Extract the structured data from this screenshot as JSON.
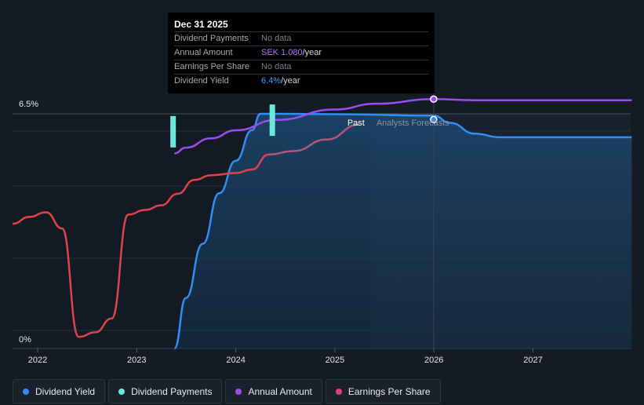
{
  "tooltip": {
    "date": "Dec 31 2025",
    "rows": [
      {
        "label": "Dividend Payments",
        "value": "No data",
        "unit": ""
      },
      {
        "label": "Annual Amount",
        "value": "SEK 1.080",
        "unit": "/year"
      },
      {
        "label": "Earnings Per Share",
        "value": "No data",
        "unit": ""
      },
      {
        "label": "Dividend Yield",
        "value": "6.4%",
        "unit": "/year"
      }
    ]
  },
  "regions": {
    "past": "Past",
    "forecast": "Analysts Forecasts"
  },
  "legend": [
    {
      "label": "Dividend Yield",
      "color": "#2f8ff5"
    },
    {
      "label": "Dividend Payments",
      "color": "#6fe8dc"
    },
    {
      "label": "Annual Amount",
      "color": "#9b4df0"
    },
    {
      "label": "Earnings Per Share",
      "color": "#d9437a"
    }
  ],
  "chart_data": {
    "type": "line",
    "x_range": [
      "2021-10-01",
      "2027-12-31"
    ],
    "x_ticks": [
      "2022",
      "2023",
      "2024",
      "2025",
      "2026",
      "2027"
    ],
    "y_ticks": [
      "0%",
      "6.5%"
    ],
    "ylim": [
      0,
      6.5
    ],
    "past_end": "2025-05-15",
    "forecast_start": "2025-05-15",
    "series": [
      {
        "name": "Dividend Yield",
        "color": "#2f8ff5",
        "unit": "%",
        "points": [
          [
            "2023-05-20",
            0
          ],
          [
            "2023-07-01",
            1.4
          ],
          [
            "2023-09-01",
            2.9
          ],
          [
            "2023-11-01",
            4.3
          ],
          [
            "2024-01-01",
            5.2
          ],
          [
            "2024-03-01",
            6.05
          ],
          [
            "2024-04-01",
            6.5
          ],
          [
            "2024-06-01",
            6.5
          ],
          [
            "2025-01-01",
            6.49
          ],
          [
            "2025-12-31",
            6.45
          ],
          [
            "2026-03-01",
            6.25
          ],
          [
            "2026-06-01",
            5.95
          ],
          [
            "2026-09-01",
            5.85
          ],
          [
            "2027-12-31",
            5.85
          ]
        ]
      },
      {
        "name": "Annual Amount",
        "color": "#9b4df0",
        "unit": "SEK",
        "points": [
          [
            "2023-05-20",
            0.845
          ],
          [
            "2023-07-01",
            0.87
          ],
          [
            "2023-10-01",
            0.91
          ],
          [
            "2024-01-01",
            0.945
          ],
          [
            "2024-06-01",
            0.99
          ],
          [
            "2025-01-01",
            1.035
          ],
          [
            "2025-06-01",
            1.06
          ],
          [
            "2025-12-31",
            1.08
          ],
          [
            "2026-06-01",
            1.075
          ],
          [
            "2027-12-31",
            1.075
          ]
        ]
      },
      {
        "name": "Earnings Per Share",
        "color": "#d9437a",
        "unit": "SEK",
        "points": [
          [
            "2021-10-01",
            0.54
          ],
          [
            "2021-12-01",
            0.57
          ],
          [
            "2022-02-01",
            0.59
          ],
          [
            "2022-04-01",
            0.52
          ],
          [
            "2022-06-01",
            0.05
          ],
          [
            "2022-08-01",
            0.07
          ],
          [
            "2022-10-01",
            0.13
          ],
          [
            "2022-12-01",
            0.58
          ],
          [
            "2023-02-01",
            0.6
          ],
          [
            "2023-04-01",
            0.62
          ],
          [
            "2023-06-01",
            0.67
          ],
          [
            "2023-08-01",
            0.73
          ],
          [
            "2023-10-01",
            0.75
          ],
          [
            "2024-01-01",
            0.76
          ],
          [
            "2024-03-01",
            0.775
          ],
          [
            "2024-05-01",
            0.84
          ],
          [
            "2024-08-01",
            0.855
          ],
          [
            "2024-12-01",
            0.905
          ],
          [
            "2025-04-01",
            0.97
          ]
        ]
      },
      {
        "name": "Dividend Payments",
        "color": "#6fe8dc",
        "unit": "SEK",
        "bars": [
          [
            "2023-05-15",
            1.0
          ],
          [
            "2024-05-15",
            1.05
          ]
        ]
      }
    ],
    "tooltip_date": "2025-12-31"
  }
}
